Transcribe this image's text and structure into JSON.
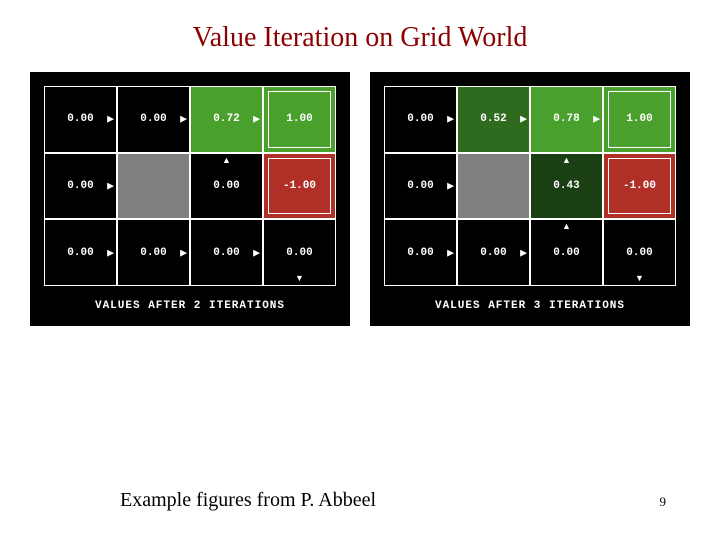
{
  "title": "Value Iteration on Grid World",
  "title_color": "#8b0000",
  "title_fontsize": 28,
  "footer_credit": "Example figures from P. Abbeel",
  "page_number": "9",
  "colors": {
    "panel_bg": "#000000",
    "cell_border": "#ffffff",
    "text": "#ffffff",
    "wall": "#808080",
    "green_bright": "#4aa02c",
    "green_mid": "#2f6b1f",
    "green_dark": "#1a3f12",
    "green_vdark": "#0d2008",
    "red_bright": "#b03028"
  },
  "panels": [
    {
      "caption": "VALUES AFTER 2 ITERATIONS",
      "cells": [
        {
          "r": 0,
          "c": 0,
          "value": "0.00",
          "bg": "#000000",
          "arrow": "right"
        },
        {
          "r": 0,
          "c": 1,
          "value": "0.00",
          "bg": "#000000",
          "arrow": "right"
        },
        {
          "r": 0,
          "c": 2,
          "value": "0.72",
          "bg": "#4aa02c",
          "arrow": "right"
        },
        {
          "r": 0,
          "c": 3,
          "value": "1.00",
          "bg": "#4aa02c",
          "terminal": true
        },
        {
          "r": 1,
          "c": 0,
          "value": "0.00",
          "bg": "#000000",
          "arrow": "right"
        },
        {
          "r": 1,
          "c": 1,
          "wall": true,
          "bg": "#808080"
        },
        {
          "r": 1,
          "c": 2,
          "value": "0.00",
          "bg": "#000000",
          "arrow": "up"
        },
        {
          "r": 1,
          "c": 3,
          "value": "-1.00",
          "bg": "#b03028",
          "terminal": true
        },
        {
          "r": 2,
          "c": 0,
          "value": "0.00",
          "bg": "#000000",
          "arrow": "right"
        },
        {
          "r": 2,
          "c": 1,
          "value": "0.00",
          "bg": "#000000",
          "arrow": "right"
        },
        {
          "r": 2,
          "c": 2,
          "value": "0.00",
          "bg": "#000000",
          "arrow": "right"
        },
        {
          "r": 2,
          "c": 3,
          "value": "0.00",
          "bg": "#000000",
          "arrow": "down"
        }
      ]
    },
    {
      "caption": "VALUES AFTER 3 ITERATIONS",
      "cells": [
        {
          "r": 0,
          "c": 0,
          "value": "0.00",
          "bg": "#000000",
          "arrow": "right"
        },
        {
          "r": 0,
          "c": 1,
          "value": "0.52",
          "bg": "#2f6b1f",
          "arrow": "right"
        },
        {
          "r": 0,
          "c": 2,
          "value": "0.78",
          "bg": "#4aa02c",
          "arrow": "right"
        },
        {
          "r": 0,
          "c": 3,
          "value": "1.00",
          "bg": "#4aa02c",
          "terminal": true
        },
        {
          "r": 1,
          "c": 0,
          "value": "0.00",
          "bg": "#000000",
          "arrow": "right"
        },
        {
          "r": 1,
          "c": 1,
          "wall": true,
          "bg": "#808080"
        },
        {
          "r": 1,
          "c": 2,
          "value": "0.43",
          "bg": "#1a3f12",
          "arrow": "up"
        },
        {
          "r": 1,
          "c": 3,
          "value": "-1.00",
          "bg": "#b03028",
          "terminal": true
        },
        {
          "r": 2,
          "c": 0,
          "value": "0.00",
          "bg": "#000000",
          "arrow": "right"
        },
        {
          "r": 2,
          "c": 1,
          "value": "0.00",
          "bg": "#000000",
          "arrow": "right"
        },
        {
          "r": 2,
          "c": 2,
          "value": "0.00",
          "bg": "#000000",
          "arrow": "up"
        },
        {
          "r": 2,
          "c": 3,
          "value": "0.00",
          "bg": "#000000",
          "arrow": "down"
        }
      ]
    }
  ]
}
